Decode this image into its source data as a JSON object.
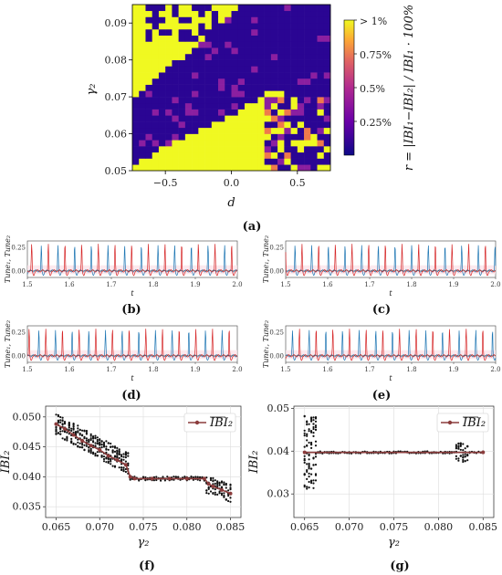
{
  "panel_labels": [
    "(a)",
    "(b)",
    "(c)",
    "(d)",
    "(e)",
    "(f)",
    "(g)"
  ],
  "colors": {
    "yellow": "#f0f921",
    "indigo": "#2a0593",
    "purple": "#8b1fa0",
    "orange": "#ef7a4b",
    "red_series": "#d62728",
    "blue_series": "#1f77b4",
    "line_f": "#8c3d3d",
    "grid": "#dddddd"
  },
  "chart_data": [
    {
      "id": "a",
      "type": "heatmap",
      "xlabel": "d",
      "ylabel": "γ₂",
      "xlim": [
        -0.75,
        0.75
      ],
      "ylim": [
        0.05,
        0.095
      ],
      "xticks": [
        "−0.5",
        "0.0",
        "0.5"
      ],
      "xtick_values": [
        -0.5,
        0.0,
        0.5
      ],
      "yticks": [
        "0.05",
        "0.06",
        "0.07",
        "0.08",
        "0.09"
      ],
      "ytick_values": [
        0.05,
        0.06,
        0.07,
        0.08,
        0.09
      ],
      "colorbar": {
        "ticks": [
          "> 1%",
          "0.75%",
          "0.5%",
          "0.25%"
        ],
        "tick_values": [
          1.0,
          0.75,
          0.5,
          0.25
        ],
        "label": "r = |IBI₁−IBI₂| / IBI₁ · 100%",
        "colormap": "plasma"
      }
    },
    {
      "id": "b-e",
      "type": "line",
      "panels": [
        "b",
        "c",
        "d",
        "e"
      ],
      "xlabel": "t",
      "ylabel": "Tune₁, Tune₂",
      "xlim": [
        1.5,
        2.0
      ],
      "ylim": [
        -0.07,
        0.32
      ],
      "xticks": [
        "1.5",
        "1.6",
        "1.7",
        "1.8",
        "1.9",
        "2.0"
      ],
      "xtick_values": [
        1.5,
        1.6,
        1.7,
        1.8,
        1.9,
        2.0
      ],
      "yticks": [
        "0.00",
        "0.25"
      ],
      "ytick_values": [
        0.0,
        0.25
      ]
    },
    {
      "id": "f",
      "type": "scatter",
      "xlabel": "γ₂",
      "ylabel": "IBI₂",
      "legend": "IBI₂ (mean)",
      "legend_position": "top-right",
      "xlim": [
        0.0638,
        0.0862
      ],
      "ylim": [
        0.0332,
        0.0518
      ],
      "xticks": [
        "0.065",
        "0.070",
        "0.075",
        "0.080",
        "0.085"
      ],
      "xtick_values": [
        0.065,
        0.07,
        0.075,
        0.08,
        0.085
      ],
      "yticks": [
        "0.035",
        "0.040",
        "0.045",
        "0.050"
      ],
      "ytick_values": [
        0.035,
        0.04,
        0.045,
        0.05
      ],
      "grid": true,
      "mean_line": {
        "x": [
          0.065,
          0.066,
          0.067,
          0.068,
          0.069,
          0.07,
          0.071,
          0.072,
          0.073,
          0.0735,
          0.074,
          0.076,
          0.078,
          0.08,
          0.082,
          0.0825,
          0.083,
          0.084,
          0.085
        ],
        "y": [
          0.0488,
          0.048,
          0.047,
          0.046,
          0.0452,
          0.0445,
          0.0435,
          0.0428,
          0.042,
          0.04,
          0.0397,
          0.0397,
          0.0397,
          0.0397,
          0.0397,
          0.0388,
          0.0384,
          0.0378,
          0.0372
        ]
      }
    },
    {
      "id": "g",
      "type": "scatter",
      "xlabel": "γ₂",
      "ylabel": "IBI₂",
      "legend": "IBI₂ (mean)",
      "legend_position": "top-right",
      "xlim": [
        0.0638,
        0.0862
      ],
      "ylim": [
        0.0245,
        0.0505
      ],
      "xticks": [
        "0.065",
        "0.070",
        "0.075",
        "0.080",
        "0.085"
      ],
      "xtick_values": [
        0.065,
        0.07,
        0.075,
        0.08,
        0.085
      ],
      "yticks": [
        "0.03",
        "0.04",
        "0.05"
      ],
      "ytick_values": [
        0.03,
        0.04,
        0.05
      ],
      "grid": true,
      "mean_line": {
        "x": [
          0.065,
          0.085
        ],
        "y": [
          0.0397,
          0.0397
        ]
      }
    }
  ]
}
